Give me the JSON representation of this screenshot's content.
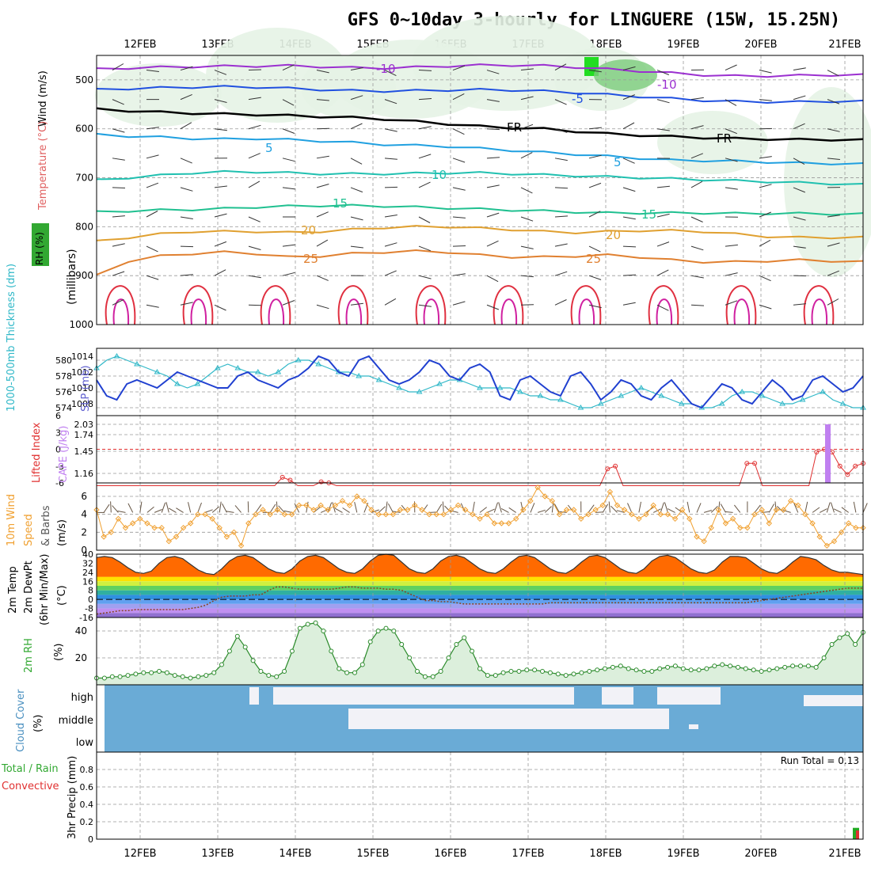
{
  "title": "GFS 0~10day 3-hourly for LINGUERE (15W, 15.25N)",
  "colors": {
    "grid": "#999999",
    "rh_green": "#32a832",
    "cloud_blue": "#6aabd6",
    "cloud_white": "#f2f2f7",
    "slp_blue": "#2040d0",
    "thickness_cyan": "#30b8c8",
    "cape_purple": "#c080f0",
    "li_red": "#e03030",
    "wind_orange": "#f0a030"
  },
  "chart_data": [
    {
      "type": "contour",
      "panel": "upper-air",
      "dates": [
        "12FEB",
        "13FEB",
        "14FEB",
        "15FEB",
        "16FEB",
        "17FEB",
        "18FEB",
        "19FEB",
        "20FEB",
        "21FEB"
      ],
      "ylabel": "(millibars)",
      "side_labels": [
        "Wind (m/s)",
        "Temperature (°C)",
        "RH (%)"
      ],
      "yticks": [
        "500",
        "600",
        "700",
        "800",
        "900",
        "1000"
      ],
      "ylim": [
        450,
        1000
      ],
      "isotherms": [
        {
          "value": -10,
          "label": "-10",
          "level": [
            478,
            476,
            474,
            473,
            472,
            472,
            471,
            473,
            475,
            476,
            474,
            472,
            470,
            470,
            471,
            474,
            478,
            482,
            486,
            490,
            492,
            492,
            491,
            490,
            490
          ]
        },
        {
          "value": -5,
          "label": "-5",
          "level": [
            520,
            518,
            516,
            515,
            514,
            515,
            517,
            520,
            522,
            523,
            522,
            521,
            520,
            521,
            523,
            526,
            530,
            534,
            538,
            542,
            544,
            545,
            545,
            544,
            544
          ]
        },
        {
          "value": 0,
          "label": "FR",
          "level": [
            560,
            563,
            566,
            568,
            570,
            571,
            573,
            575,
            577,
            580,
            585,
            590,
            595,
            598,
            600,
            605,
            610,
            613,
            616,
            618,
            620,
            621,
            622,
            622,
            623
          ]
        },
        {
          "value": 5,
          "label": "5",
          "level": [
            612,
            615,
            617,
            620,
            621,
            620,
            622,
            625,
            628,
            632,
            634,
            636,
            640,
            644,
            648,
            652,
            656,
            660,
            664,
            665,
            666,
            668,
            670,
            671,
            672
          ]
        },
        {
          "value": 10,
          "label": "10",
          "level": [
            705,
            700,
            695,
            690,
            688,
            688,
            690,
            692,
            692,
            692,
            691,
            690,
            690,
            692,
            694,
            696,
            698,
            700,
            702,
            704,
            706,
            708,
            710,
            712,
            714
          ]
        },
        {
          "value": 15,
          "label": "15",
          "level": [
            770,
            768,
            766,
            765,
            763,
            760,
            758,
            757,
            757,
            758,
            760,
            762,
            764,
            766,
            768,
            770,
            772,
            772,
            772,
            772,
            773,
            773,
            773,
            774,
            774
          ]
        },
        {
          "value": 20,
          "label": "20",
          "level": [
            830,
            822,
            815,
            810,
            810,
            810,
            812,
            810,
            806,
            802,
            800,
            800,
            803,
            806,
            810,
            812,
            810,
            808,
            808,
            810,
            815,
            820,
            822,
            822,
            822
          ]
        },
        {
          "value": 25,
          "label": "25",
          "level": [
            900,
            870,
            860,
            855,
            852,
            855,
            862,
            860,
            855,
            852,
            850,
            852,
            858,
            862,
            862,
            860,
            858,
            862,
            868,
            872,
            872,
            870,
            868,
            870,
            872
          ]
        }
      ],
      "isotherm_labels_shown": [
        "-10",
        "-10",
        "-5",
        "FR",
        "FR",
        "5",
        "5",
        "10",
        "15",
        "15",
        "20",
        "20",
        "25",
        "25"
      ]
    },
    {
      "type": "line",
      "panel": "thickness-slp",
      "ylabel_left": "1000-500mb Thickness (dm)",
      "ylabel_right": "SLP (mb)",
      "yticks_left": [
        "574",
        "576",
        "578",
        "580"
      ],
      "yticks_right": [
        "1008",
        "1010",
        "1012",
        "1014"
      ],
      "ylim_left": [
        573,
        581.5
      ],
      "series": [
        {
          "name": "1000-500mb Thickness (dm)",
          "values": [
            579,
            580,
            580.5,
            580,
            579.5,
            579,
            578.5,
            578,
            577,
            576.5,
            577,
            578,
            579,
            579.5,
            579,
            578.5,
            578.5,
            578,
            578.5,
            579.5,
            580,
            580,
            579.5,
            579,
            578.5,
            578.5,
            578,
            578,
            577.5,
            577,
            576.5,
            576,
            576,
            576.5,
            577,
            577.5,
            577.5,
            577,
            576.5,
            576.5,
            576.5,
            576.5,
            576,
            575.5,
            575.5,
            575,
            575,
            574.5,
            574,
            574,
            574.5,
            575,
            575.5,
            576,
            576.5,
            576,
            575.5,
            575,
            574.5,
            574.5,
            574,
            574,
            574.5,
            575.5,
            576,
            576,
            575.5,
            575,
            574.5,
            574.5,
            575,
            575.5,
            576,
            575,
            574.5,
            574,
            574
          ]
        },
        {
          "name": "SLP (mb)",
          "values": [
            1011,
            1009,
            1008.5,
            1010.5,
            1011,
            1010.5,
            1010,
            1011,
            1012,
            1011.5,
            1011,
            1010.5,
            1010,
            1010,
            1011.5,
            1012,
            1011,
            1010.5,
            1010,
            1011,
            1011.5,
            1012.5,
            1014,
            1013.5,
            1012,
            1011.5,
            1013.5,
            1014,
            1012.5,
            1011,
            1010.5,
            1011,
            1012,
            1013.5,
            1013,
            1011.5,
            1011,
            1012.5,
            1013,
            1012,
            1009,
            1008.5,
            1011,
            1011.5,
            1010.5,
            1009.5,
            1009,
            1011.5,
            1012,
            1010.5,
            1008.5,
            1009.5,
            1011,
            1010.5,
            1009,
            1008.5,
            1010,
            1011,
            1009.5,
            1008,
            1007.5,
            1009,
            1010.5,
            1010,
            1008.5,
            1008,
            1009.5,
            1011,
            1010,
            1008.5,
            1009,
            1011,
            1011.5,
            1010.5,
            1009.5,
            1010,
            1011.5
          ]
        }
      ]
    },
    {
      "type": "line",
      "panel": "instability",
      "ylabel_left": "Lifted Index",
      "ylabel_right": "CAPE (J/kg)",
      "yticks_left": [
        "6",
        "3",
        "0",
        "-3",
        "-6"
      ],
      "yticks_right": [
        "1.16",
        "1.45",
        "1.74",
        "2.03"
      ],
      "series": [
        {
          "name": "Lifted Index",
          "values": [
            6.5,
            6.5,
            6.5,
            6.5,
            6.5,
            6.5,
            6.5,
            6.5,
            6.5,
            6.5,
            6.5,
            6.5,
            6.5,
            6.5,
            6.5,
            6.5,
            6.5,
            6.5,
            6.5,
            6.5,
            6.5,
            6.5,
            6.5,
            6.5,
            5,
            5.5,
            6.5,
            6.5,
            6.5,
            5.8,
            6,
            6.5,
            6.5,
            6.5,
            6.5,
            6.5,
            6.5,
            6.5,
            6.5,
            6.5,
            6.5,
            6.5,
            6.5,
            6.5,
            6.5,
            6.5,
            6.5,
            6.5,
            6.5,
            6.5,
            6.5,
            6.5,
            6.5,
            6.5,
            6.5,
            6.5,
            6.5,
            6.5,
            6.5,
            6.5,
            6.5,
            6.5,
            6.5,
            6.5,
            6.5,
            6.5,
            3.5,
            3,
            6.5,
            6.5,
            6.5,
            6.5,
            6.5,
            6.5,
            6.5,
            6.5,
            6.5,
            6.5,
            6.5,
            6.5,
            6.5,
            6.5,
            6.5,
            6.5,
            2.5,
            2.5,
            6.5,
            6.5,
            6.5,
            6.5,
            6.5,
            6.5,
            6.5,
            0.5,
            0,
            0.5,
            3,
            4.5,
            3,
            2.5
          ]
        },
        {
          "name": "CAPE (J/kg)",
          "values": [
            {
              "day_frac": 9.35,
              "value": 2.03
            }
          ]
        }
      ],
      "zero_line": 0
    },
    {
      "type": "line",
      "panel": "10m-wind",
      "ylabel": "10m Wind Speed (m/s) & Barbs",
      "yticks": [
        "0",
        "2",
        "4",
        "6"
      ],
      "ylim": [
        0,
        7.5
      ],
      "series": [
        {
          "name": "10m Wind Speed",
          "values": [
            4.5,
            1.5,
            2,
            3.5,
            2.5,
            3,
            3.5,
            3,
            2.5,
            2.5,
            1,
            1.5,
            2.5,
            3,
            4,
            4,
            3.5,
            2.5,
            1.5,
            2,
            0.5,
            3,
            4,
            4.5,
            4,
            4.5,
            4,
            4,
            5,
            5,
            4.5,
            5,
            4.5,
            5,
            5.5,
            5,
            6,
            5.5,
            4.5,
            4,
            4,
            4,
            4.5,
            4.5,
            5,
            4.5,
            4,
            4,
            4,
            4.5,
            5,
            4.5,
            4,
            3.5,
            4,
            3,
            3,
            3,
            3.5,
            4.5,
            5.5,
            7,
            6,
            5.5,
            4,
            4.5,
            4.5,
            3.5,
            4,
            4.5,
            5,
            6.5,
            5,
            4.5,
            4,
            3.5,
            4,
            5,
            4,
            4,
            3.5,
            4.5,
            3.5,
            1.5,
            1,
            2.5,
            4.5,
            3,
            3.5,
            2.5,
            2.5,
            4,
            4.5,
            3,
            4.5,
            4.5,
            5.5,
            5,
            4,
            3,
            1.5,
            0.5,
            1,
            2,
            3,
            2.5,
            2.5
          ]
        }
      ]
    },
    {
      "type": "area",
      "panel": "2m-temp",
      "ylabel": "2m Temp 2m DewPt (6hr Min/Max) (°C)",
      "yticks": [
        "40",
        "32",
        "24",
        "16",
        "8",
        "0",
        "-8",
        "-16"
      ],
      "ylim": [
        -16,
        40
      ],
      "series": [
        {
          "name": "2m Temp",
          "values": [
            37,
            38,
            37,
            33,
            28,
            24,
            23,
            25,
            32,
            37,
            38,
            36,
            31,
            26,
            23,
            22,
            27,
            34,
            38,
            39,
            37,
            32,
            27,
            24,
            23,
            27,
            34,
            38,
            39,
            37,
            32,
            27,
            24,
            23,
            27,
            34,
            39,
            40,
            39,
            33,
            27,
            24,
            23,
            27,
            34,
            38,
            39,
            37,
            32,
            27,
            24,
            23,
            27,
            33,
            38,
            39,
            37,
            32,
            27,
            24,
            23,
            27,
            33,
            38,
            39,
            37,
            32,
            27,
            24,
            23,
            27,
            34,
            38,
            39,
            37,
            32,
            27,
            24,
            23,
            26,
            33,
            38,
            38,
            37,
            32,
            27,
            24,
            23,
            27,
            33,
            38,
            37,
            35,
            30,
            26,
            24,
            24,
            23,
            22
          ]
        },
        {
          "name": "2m DewPt",
          "values": [
            -13,
            -12,
            -11,
            -10,
            -10,
            -9,
            -9,
            -9,
            -9,
            -9,
            -9,
            -9,
            -8,
            -7,
            -5,
            -1,
            2,
            3,
            3,
            3,
            4,
            4,
            8,
            11,
            11,
            10,
            9,
            9,
            9,
            9,
            9,
            10,
            11,
            11,
            10,
            10,
            10,
            9,
            9,
            8,
            5,
            2,
            -1,
            -1,
            -2,
            -2,
            -3,
            -4,
            -4,
            -4,
            -4,
            -4,
            -4,
            -4,
            -4,
            -4,
            -4,
            -4,
            -3,
            -3,
            -3,
            -3,
            -3,
            -3,
            -3,
            -3,
            -3,
            -3,
            -3,
            -3,
            -3,
            -3,
            -3,
            -3,
            -3,
            -3,
            -3,
            -3,
            -3,
            -3,
            -3,
            -3,
            -3,
            -3,
            -2,
            -1,
            0,
            1,
            2,
            3,
            4,
            5,
            6,
            7,
            8,
            9,
            10,
            10,
            10
          ]
        }
      ]
    },
    {
      "type": "area",
      "panel": "2m-rh",
      "ylabel": "2m RH (%)",
      "yticks": [
        "20",
        "40"
      ],
      "ylim": [
        0,
        50
      ],
      "series": [
        {
          "name": "2m RH",
          "values": [
            5,
            5,
            6,
            6,
            7,
            8,
            9,
            9,
            10,
            9,
            7,
            6,
            5,
            6,
            7,
            9,
            15,
            25,
            36,
            28,
            18,
            10,
            7,
            6,
            10,
            25,
            42,
            45,
            46,
            40,
            25,
            12,
            9,
            9,
            15,
            32,
            40,
            42,
            40,
            30,
            20,
            10,
            6,
            6,
            10,
            20,
            30,
            35,
            25,
            12,
            7,
            7,
            9,
            10,
            10,
            11,
            11,
            10,
            9,
            8,
            7,
            8,
            9,
            10,
            11,
            12,
            13,
            14,
            12,
            11,
            10,
            10,
            12,
            13,
            14,
            12,
            11,
            11,
            12,
            14,
            15,
            14,
            13,
            12,
            11,
            10,
            11,
            12,
            13,
            14,
            14,
            14,
            13,
            20,
            30,
            35,
            38,
            30,
            39
          ]
        }
      ]
    },
    {
      "type": "heatmap",
      "panel": "cloud-cover",
      "ylabel": "Cloud Cover (%)",
      "rows": [
        "high",
        "middle",
        "low"
      ]
    },
    {
      "type": "bar",
      "panel": "precip",
      "ylabel": "3hr Precip (mm)",
      "side_labels": [
        "Total / Rain",
        "Convective"
      ],
      "yticks": [
        "0",
        "0.2",
        "0.4",
        "0.6",
        "0.8"
      ],
      "ylim": [
        0,
        1.0
      ],
      "run_total_label": "Run Total = 0.13",
      "series": [
        {
          "name": "Total / Rain",
          "values": [
            {
              "day_frac": 9.38,
              "value": 0.13
            }
          ]
        },
        {
          "name": "Convective",
          "values": [
            {
              "day_frac": 9.38,
              "value": 0.1
            }
          ]
        }
      ]
    }
  ]
}
